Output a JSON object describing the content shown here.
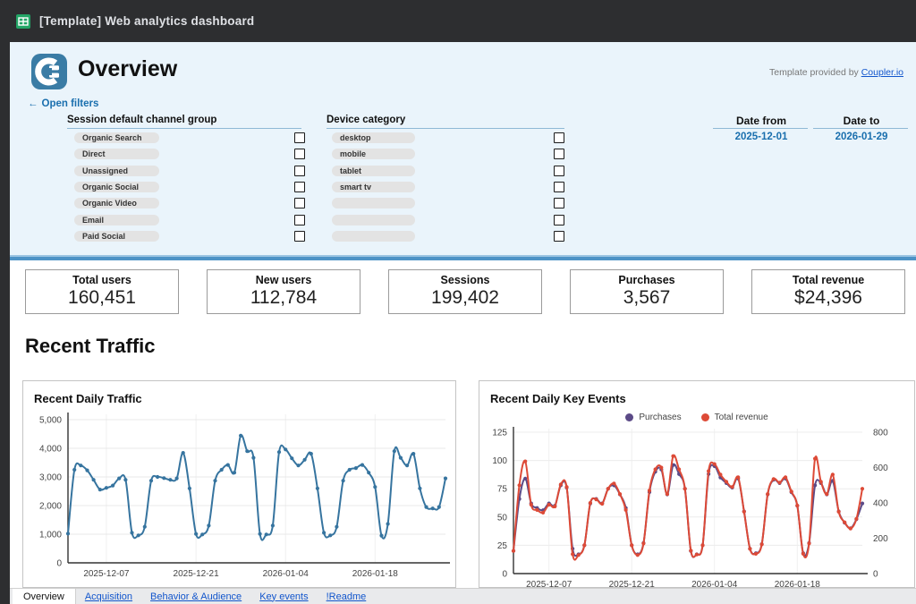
{
  "window": {
    "title": "[Template] Web analytics dashboard"
  },
  "header": {
    "page_title": "Overview",
    "provided_by": "Template provided by",
    "provider_link": "Coupler.io"
  },
  "filters": {
    "toggle_arrow": "←",
    "toggle_label": "Open filters",
    "columns": [
      {
        "header": "Session default channel group",
        "options": [
          "Organic Search",
          "Direct",
          "Unassigned",
          "Organic Social",
          "Organic Video",
          "Email",
          "Paid Social"
        ]
      },
      {
        "header": "Device category",
        "options": [
          "desktop",
          "mobile",
          "tablet",
          "smart tv",
          "",
          "",
          ""
        ]
      }
    ],
    "date_from": {
      "label": "Date from",
      "value": "2025-12-01"
    },
    "date_to": {
      "label": "Date to",
      "value": "2026-01-29"
    }
  },
  "kpis": [
    {
      "label": "Total users",
      "value": "160,451"
    },
    {
      "label": "New users",
      "value": "112,784"
    },
    {
      "label": "Sessions",
      "value": "199,402"
    },
    {
      "label": "Purchases",
      "value": "3,567"
    },
    {
      "label": "Total revenue",
      "value": "$24,396"
    }
  ],
  "section_title": "Recent Traffic",
  "chart_data": [
    {
      "type": "line",
      "title": "Recent Daily Traffic",
      "xlabel": "",
      "ylabel": "",
      "x_start_date": "2025-12-01",
      "x_ticks": [
        "2025-12-07",
        "2025-12-21",
        "2026-01-04",
        "2026-01-18"
      ],
      "x_tick_indices": [
        6,
        20,
        34,
        48
      ],
      "ylim": [
        0,
        5000
      ],
      "y_ticks": [
        "0",
        "1,000",
        "2,000",
        "3,000",
        "4,000",
        "5,000"
      ],
      "grid": true,
      "legend_position": "none",
      "color": "#36749f",
      "values": [
        1020,
        3250,
        3400,
        3230,
        2900,
        2560,
        2620,
        2700,
        2950,
        2900,
        1050,
        960,
        1260,
        2870,
        3000,
        2960,
        2900,
        2950,
        3840,
        2600,
        1010,
        990,
        1300,
        2870,
        3250,
        3420,
        3150,
        4440,
        3900,
        3670,
        1010,
        990,
        1300,
        3870,
        3960,
        3650,
        3400,
        3600,
        3810,
        2600,
        1050,
        960,
        1260,
        2870,
        3250,
        3310,
        3420,
        3150,
        2650,
        950,
        1360,
        3900,
        3670,
        3400,
        3810,
        2600,
        1950,
        1900,
        1950,
        2950
      ]
    },
    {
      "type": "line",
      "title": "Recent Daily Key Events",
      "xlabel": "",
      "ylabel": "",
      "x_start_date": "2025-12-01",
      "x_ticks": [
        "2025-12-07",
        "2025-12-21",
        "2026-01-04",
        "2026-01-18"
      ],
      "x_tick_indices": [
        6,
        20,
        34,
        48
      ],
      "ylim_left": [
        0,
        125
      ],
      "y_ticks_left": [
        "0",
        "25",
        "50",
        "75",
        "100",
        "125"
      ],
      "ylim_right": [
        0,
        800
      ],
      "y_ticks_right": [
        "0",
        "200",
        "400",
        "600",
        "800"
      ],
      "grid": true,
      "legend_position": "top",
      "series": [
        {
          "name": "Purchases",
          "axis": "left",
          "color": "#5b4a87",
          "values": [
            20,
            66,
            84,
            62,
            58,
            56,
            62,
            60,
            78,
            76,
            22,
            17,
            25,
            62,
            66,
            62,
            75,
            78,
            70,
            58,
            25,
            17,
            27,
            72,
            90,
            92,
            70,
            96,
            88,
            75,
            20,
            17,
            25,
            88,
            95,
            85,
            80,
            76,
            84,
            55,
            22,
            18,
            26,
            70,
            83,
            80,
            84,
            72,
            60,
            18,
            27,
            78,
            80,
            70,
            82,
            55,
            45,
            40,
            48,
            62
          ]
        },
        {
          "name": "Total revenue",
          "axis": "right",
          "color": "#dd4a37",
          "values": [
            128,
            500,
            635,
            390,
            360,
            345,
            390,
            380,
            505,
            490,
            110,
            105,
            160,
            400,
            420,
            395,
            480,
            510,
            450,
            360,
            160,
            105,
            170,
            470,
            590,
            600,
            450,
            665,
            590,
            480,
            130,
            108,
            160,
            580,
            620,
            560,
            520,
            490,
            545,
            350,
            140,
            112,
            165,
            450,
            535,
            515,
            545,
            465,
            385,
            112,
            170,
            650,
            520,
            450,
            560,
            350,
            290,
            255,
            310,
            480
          ]
        }
      ]
    }
  ],
  "tabs": [
    {
      "label": "Overview",
      "active": true
    },
    {
      "label": "Acquisition",
      "active": false
    },
    {
      "label": "Behavior & Audience",
      "active": false
    },
    {
      "label": "Key events",
      "active": false
    },
    {
      "label": "!Readme",
      "active": false
    }
  ],
  "colors": {
    "topbar_bg": "#2d2e30",
    "panel_bg": "#eaf4fb",
    "accent_blue": "#1a6fae",
    "divider_blue": "#4e93c6",
    "traffic_line": "#36749f",
    "purchases_line": "#5b4a87",
    "revenue_line": "#dd4a37",
    "sheets_green": "#23a566",
    "logo_blue": "#3a7ca5"
  }
}
